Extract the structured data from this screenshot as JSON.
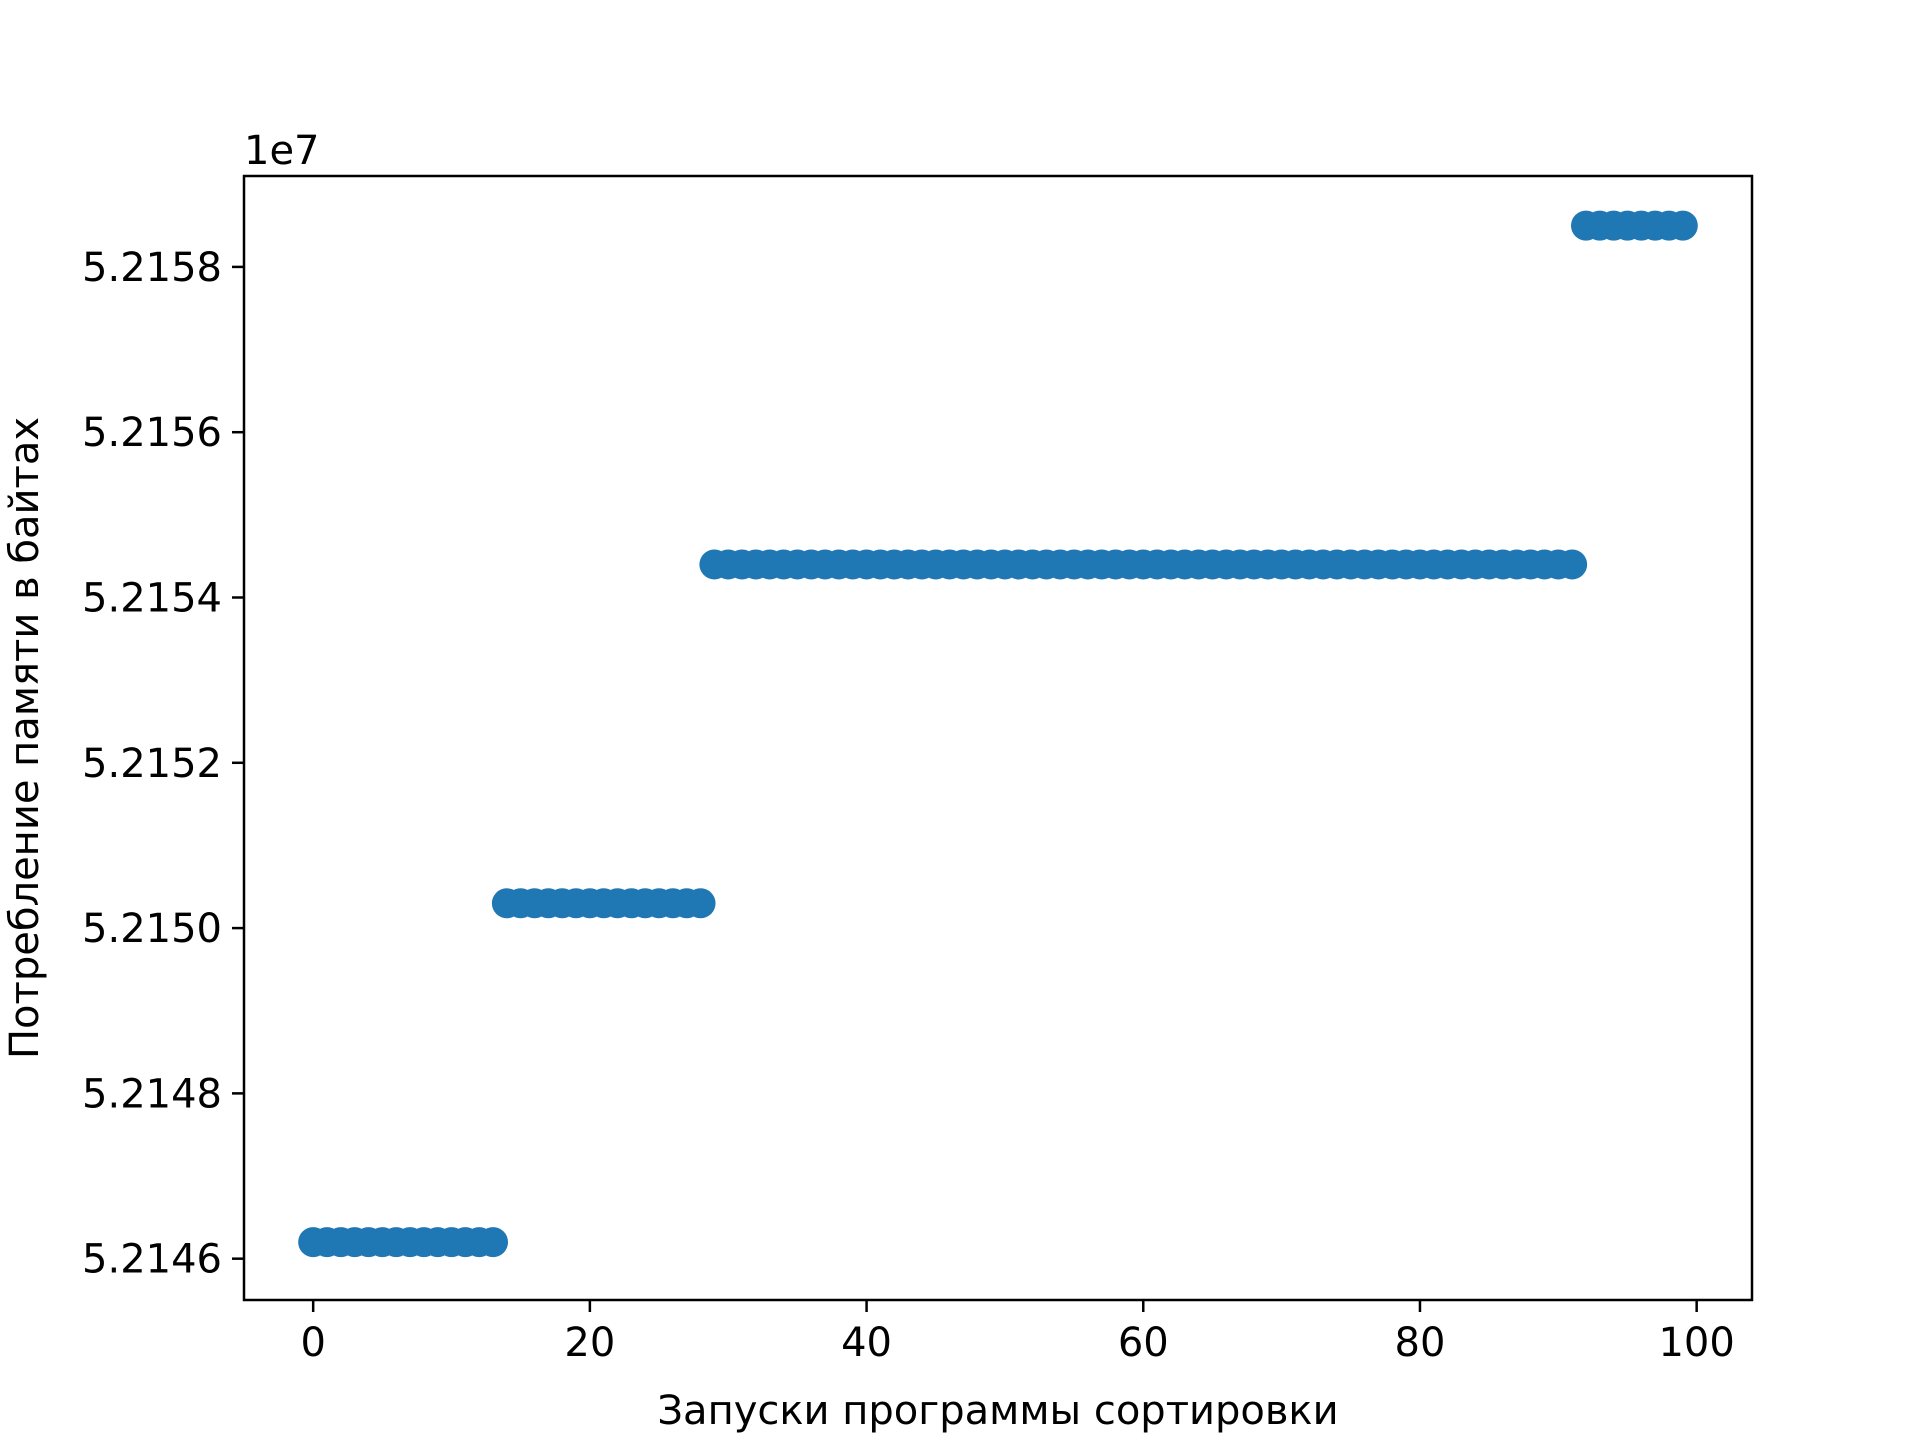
{
  "chart_data": {
    "type": "scatter",
    "title": "",
    "xlabel": "Запуски программы сортировки",
    "ylabel": "Потребление памяти в байтах",
    "y_offset_label": "1e7",
    "xlim": [
      -5,
      104
    ],
    "ylim": [
      5.21455,
      5.21591
    ],
    "x_ticks": [
      0,
      20,
      40,
      60,
      80,
      100
    ],
    "x_tick_labels": [
      "0",
      "20",
      "40",
      "60",
      "80",
      "100"
    ],
    "y_ticks": [
      5.2146,
      5.2148,
      5.215,
      5.2152,
      5.2154,
      5.2156,
      5.2158
    ],
    "y_tick_labels": [
      "5.2146",
      "5.2148",
      "5.2150",
      "5.2152",
      "5.2154",
      "5.2156",
      "5.2158"
    ],
    "grid": false,
    "legend": "none",
    "colors": {
      "points": "#1f77b4",
      "axes": "#000000"
    },
    "groups": [
      {
        "x_from": 0,
        "x_to": 13,
        "y": 5.21462
      },
      {
        "x_from": 14,
        "x_to": 28,
        "y": 5.21503
      },
      {
        "x_from": 29,
        "x_to": 91,
        "y": 5.21544
      },
      {
        "x_from": 92,
        "x_to": 99,
        "y": 5.21585
      }
    ]
  }
}
